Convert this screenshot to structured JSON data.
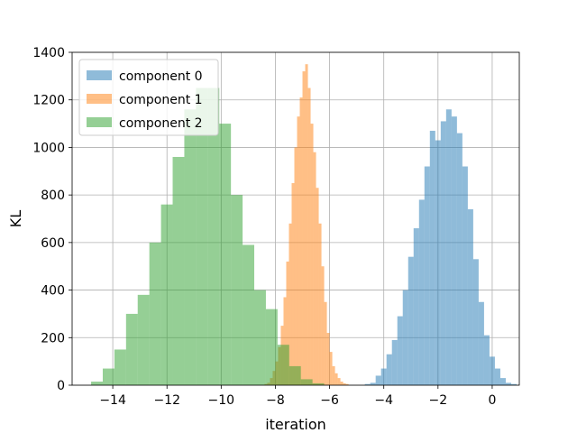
{
  "chart_data": {
    "type": "histogram",
    "title": "",
    "xlabel": "iteration",
    "ylabel": "KL",
    "xlim": [
      -15.5,
      1.0
    ],
    "ylim": [
      0,
      1400
    ],
    "xticks": [
      -14,
      -12,
      -10,
      -8,
      -6,
      -4,
      -2,
      0
    ],
    "xtick_labels": [
      "−14",
      "−12",
      "−10",
      "−8",
      "−6",
      "−4",
      "−2",
      "0"
    ],
    "yticks": [
      0,
      200,
      400,
      600,
      800,
      1000,
      1200,
      1400
    ],
    "ytick_labels": [
      "0",
      "200",
      "400",
      "600",
      "800",
      "1000",
      "1200",
      "1400"
    ],
    "grid": true,
    "legend": "upper-left",
    "alpha": 0.5,
    "series": [
      {
        "name": "component 0",
        "color": "#1f77b4",
        "bin_start": -4.7,
        "bin_width": 0.2,
        "counts": [
          5,
          10,
          40,
          70,
          130,
          190,
          290,
          400,
          540,
          660,
          780,
          920,
          1070,
          1030,
          1110,
          1160,
          1130,
          1060,
          920,
          740,
          530,
          350,
          210,
          120,
          70,
          30,
          10,
          5
        ]
      },
      {
        "name": "component 1",
        "color": "#ff7f0e",
        "bin_start": -8.4,
        "bin_width": 0.1,
        "counts": [
          5,
          10,
          30,
          60,
          100,
          160,
          250,
          370,
          520,
          680,
          850,
          1000,
          1130,
          1210,
          1320,
          1350,
          1250,
          1100,
          980,
          830,
          680,
          500,
          350,
          220,
          140,
          80,
          50,
          30,
          15,
          8,
          5
        ]
      },
      {
        "name": "component 2",
        "color": "#2ca02c",
        "bin_start": -14.8,
        "bin_width": 0.43,
        "counts": [
          15,
          70,
          150,
          300,
          380,
          600,
          760,
          960,
          1160,
          1250,
          1250,
          1100,
          800,
          590,
          400,
          320,
          170,
          80,
          25,
          8
        ]
      }
    ]
  }
}
